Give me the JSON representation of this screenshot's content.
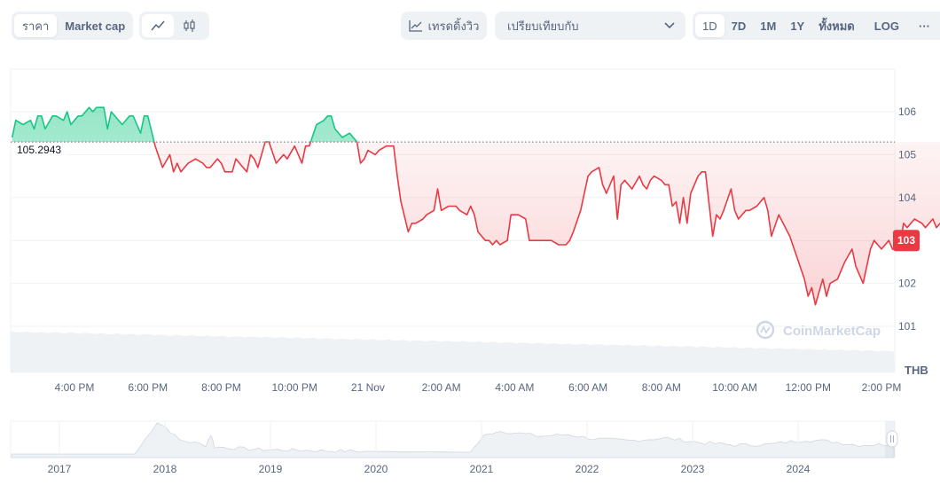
{
  "toolbar": {
    "metric_tabs": [
      "ราคา",
      "Market cap"
    ],
    "chart_style_icons": [
      "line-chart-icon",
      "candlestick-icon"
    ],
    "trend_label": "เทรดดิ้งวิว",
    "compare_placeholder": "เปรียบเทียบกับ",
    "ranges": [
      "1D",
      "7D",
      "1M",
      "1Y",
      "ทั้งหมด"
    ],
    "log_label": "LOG",
    "more_label": "···"
  },
  "chart_data": {
    "type": "line",
    "currency": "THB",
    "reference_price": 105.2943,
    "reference_label": "105.2943",
    "current_price": 103,
    "current_label": "103",
    "ylim": [
      100.5,
      106.3
    ],
    "yticks": [
      101,
      102,
      103,
      104,
      105,
      106
    ],
    "x_labels": [
      "4:00 PM",
      "6:00 PM",
      "8:00 PM",
      "10:00 PM",
      "21 Nov",
      "2:00 AM",
      "4:00 AM",
      "6:00 AM",
      "8:00 AM",
      "10:00 AM",
      "12:00 PM",
      "2:00 PM"
    ],
    "x_hours": [
      16,
      18,
      20,
      22,
      24,
      26,
      28,
      30,
      32,
      34,
      36,
      38
    ],
    "price_series": [
      [
        14.3,
        105.4
      ],
      [
        14.4,
        105.8
      ],
      [
        14.6,
        105.7
      ],
      [
        14.8,
        105.8
      ],
      [
        14.9,
        105.6
      ],
      [
        15.0,
        105.9
      ],
      [
        15.1,
        105.9
      ],
      [
        15.2,
        105.6
      ],
      [
        15.4,
        105.9
      ],
      [
        15.5,
        105.9
      ],
      [
        15.7,
        105.8
      ],
      [
        15.8,
        106.0
      ],
      [
        15.9,
        105.7
      ],
      [
        16.1,
        105.9
      ],
      [
        16.2,
        105.9
      ],
      [
        16.4,
        106.1
      ],
      [
        16.5,
        106.0
      ],
      [
        16.6,
        106.1
      ],
      [
        16.8,
        106.1
      ],
      [
        16.9,
        105.6
      ],
      [
        17.0,
        106.0
      ],
      [
        17.1,
        105.9
      ],
      [
        17.3,
        105.7
      ],
      [
        17.5,
        105.9
      ],
      [
        17.6,
        105.9
      ],
      [
        17.8,
        105.5
      ],
      [
        17.9,
        105.9
      ],
      [
        18.0,
        105.9
      ],
      [
        18.2,
        105.2
      ],
      [
        18.4,
        104.7
      ],
      [
        18.6,
        105.0
      ],
      [
        18.7,
        104.6
      ],
      [
        18.8,
        104.8
      ],
      [
        18.9,
        104.6
      ],
      [
        19.0,
        104.7
      ],
      [
        19.1,
        104.8
      ],
      [
        19.3,
        104.9
      ],
      [
        19.5,
        104.8
      ],
      [
        19.6,
        104.7
      ],
      [
        19.7,
        104.7
      ],
      [
        19.9,
        104.9
      ],
      [
        20.0,
        104.8
      ],
      [
        20.1,
        104.6
      ],
      [
        20.3,
        104.6
      ],
      [
        20.4,
        104.9
      ],
      [
        20.5,
        104.8
      ],
      [
        20.7,
        104.6
      ],
      [
        20.8,
        105.0
      ],
      [
        20.9,
        104.9
      ],
      [
        21.0,
        104.7
      ],
      [
        21.2,
        105.3
      ],
      [
        21.3,
        105.3
      ],
      [
        21.5,
        104.8
      ],
      [
        21.6,
        104.9
      ],
      [
        21.7,
        105.0
      ],
      [
        21.8,
        104.9
      ],
      [
        22.0,
        105.2
      ],
      [
        22.2,
        104.8
      ],
      [
        22.3,
        105.2
      ],
      [
        22.4,
        105.2
      ],
      [
        22.6,
        105.7
      ],
      [
        22.8,
        105.8
      ],
      [
        22.9,
        105.9
      ],
      [
        23.0,
        105.9
      ],
      [
        23.1,
        105.6
      ],
      [
        23.3,
        105.4
      ],
      [
        23.5,
        105.5
      ],
      [
        23.7,
        105.3
      ],
      [
        23.8,
        104.8
      ],
      [
        23.9,
        104.9
      ],
      [
        24.0,
        105.1
      ],
      [
        24.2,
        105.0
      ],
      [
        24.3,
        105.1
      ],
      [
        24.5,
        105.2
      ],
      [
        24.7,
        105.2
      ],
      [
        24.8,
        104.5
      ],
      [
        24.9,
        103.9
      ],
      [
        25.1,
        103.2
      ],
      [
        25.2,
        103.4
      ],
      [
        25.3,
        103.4
      ],
      [
        25.5,
        103.5
      ],
      [
        25.6,
        103.6
      ],
      [
        25.8,
        103.7
      ],
      [
        25.9,
        104.2
      ],
      [
        26.0,
        103.7
      ],
      [
        26.2,
        103.8
      ],
      [
        26.4,
        103.8
      ],
      [
        26.5,
        103.7
      ],
      [
        26.7,
        103.6
      ],
      [
        26.8,
        103.8
      ],
      [
        26.9,
        103.6
      ],
      [
        27.0,
        103.2
      ],
      [
        27.2,
        103.0
      ],
      [
        27.3,
        103.0
      ],
      [
        27.4,
        102.9
      ],
      [
        27.5,
        103.0
      ],
      [
        27.6,
        102.9
      ],
      [
        27.8,
        103.0
      ],
      [
        27.9,
        103.6
      ],
      [
        28.1,
        103.6
      ],
      [
        28.3,
        103.5
      ],
      [
        28.4,
        103.0
      ],
      [
        28.6,
        103.0
      ],
      [
        28.8,
        103.0
      ],
      [
        29.0,
        103.0
      ],
      [
        29.2,
        102.9
      ],
      [
        29.4,
        102.9
      ],
      [
        29.5,
        103.0
      ],
      [
        29.6,
        103.2
      ],
      [
        29.8,
        103.7
      ],
      [
        30.0,
        104.5
      ],
      [
        30.1,
        104.6
      ],
      [
        30.3,
        104.7
      ],
      [
        30.4,
        104.3
      ],
      [
        30.5,
        104.1
      ],
      [
        30.7,
        104.5
      ],
      [
        30.8,
        103.5
      ],
      [
        30.9,
        104.3
      ],
      [
        31.0,
        104.4
      ],
      [
        31.2,
        104.2
      ],
      [
        31.4,
        104.5
      ],
      [
        31.5,
        104.3
      ],
      [
        31.6,
        104.2
      ],
      [
        31.7,
        104.4
      ],
      [
        31.8,
        104.5
      ],
      [
        32.0,
        104.4
      ],
      [
        32.1,
        104.3
      ],
      [
        32.2,
        104.3
      ],
      [
        32.3,
        103.8
      ],
      [
        32.4,
        103.9
      ],
      [
        32.5,
        103.4
      ],
      [
        32.6,
        104.0
      ],
      [
        32.7,
        103.4
      ],
      [
        32.8,
        104.1
      ],
      [
        33.0,
        104.5
      ],
      [
        33.1,
        104.6
      ],
      [
        33.2,
        104.6
      ],
      [
        33.4,
        103.1
      ],
      [
        33.5,
        103.6
      ],
      [
        33.6,
        103.5
      ],
      [
        33.7,
        103.7
      ],
      [
        33.9,
        104.2
      ],
      [
        34.0,
        103.7
      ],
      [
        34.1,
        103.5
      ],
      [
        34.3,
        103.7
      ],
      [
        34.4,
        103.7
      ],
      [
        34.6,
        103.8
      ],
      [
        34.8,
        104.0
      ],
      [
        34.9,
        103.7
      ],
      [
        35.0,
        103.1
      ],
      [
        35.2,
        103.6
      ],
      [
        35.5,
        103.1
      ],
      [
        35.7,
        102.6
      ],
      [
        35.9,
        102.1
      ],
      [
        36.0,
        101.7
      ],
      [
        36.1,
        101.9
      ],
      [
        36.2,
        101.5
      ],
      [
        36.4,
        102.1
      ],
      [
        36.5,
        101.7
      ],
      [
        36.6,
        102.0
      ],
      [
        36.8,
        102.1
      ],
      [
        37.0,
        102.5
      ],
      [
        37.2,
        102.8
      ],
      [
        37.3,
        102.4
      ],
      [
        37.5,
        102.0
      ],
      [
        37.7,
        102.8
      ],
      [
        37.8,
        103.0
      ],
      [
        38.0,
        102.8
      ],
      [
        38.2,
        103.0
      ],
      [
        38.3,
        102.8
      ],
      [
        38.5,
        102.8
      ],
      [
        38.6,
        103.4
      ],
      [
        38.7,
        103.3
      ],
      [
        38.9,
        103.5
      ],
      [
        39.1,
        103.4
      ],
      [
        39.2,
        103.3
      ],
      [
        39.4,
        103.5
      ],
      [
        39.5,
        103.3
      ],
      [
        39.6,
        103.4
      ],
      [
        39.8,
        103.3
      ],
      [
        40.0,
        103.2
      ],
      [
        40.1,
        103.3
      ],
      [
        40.2,
        102.8
      ],
      [
        40.4,
        103.1
      ],
      [
        40.5,
        103.1
      ],
      [
        40.6,
        102.9
      ],
      [
        40.8,
        102.9
      ],
      [
        40.9,
        103.0
      ],
      [
        41.1,
        102.9
      ],
      [
        41.2,
        103.0
      ],
      [
        41.4,
        103.0
      ]
    ],
    "nav_years": [
      "2017",
      "2018",
      "2019",
      "2020",
      "2021",
      "2022",
      "2023",
      "2024"
    ],
    "watermark": "CoinMarketCap"
  }
}
